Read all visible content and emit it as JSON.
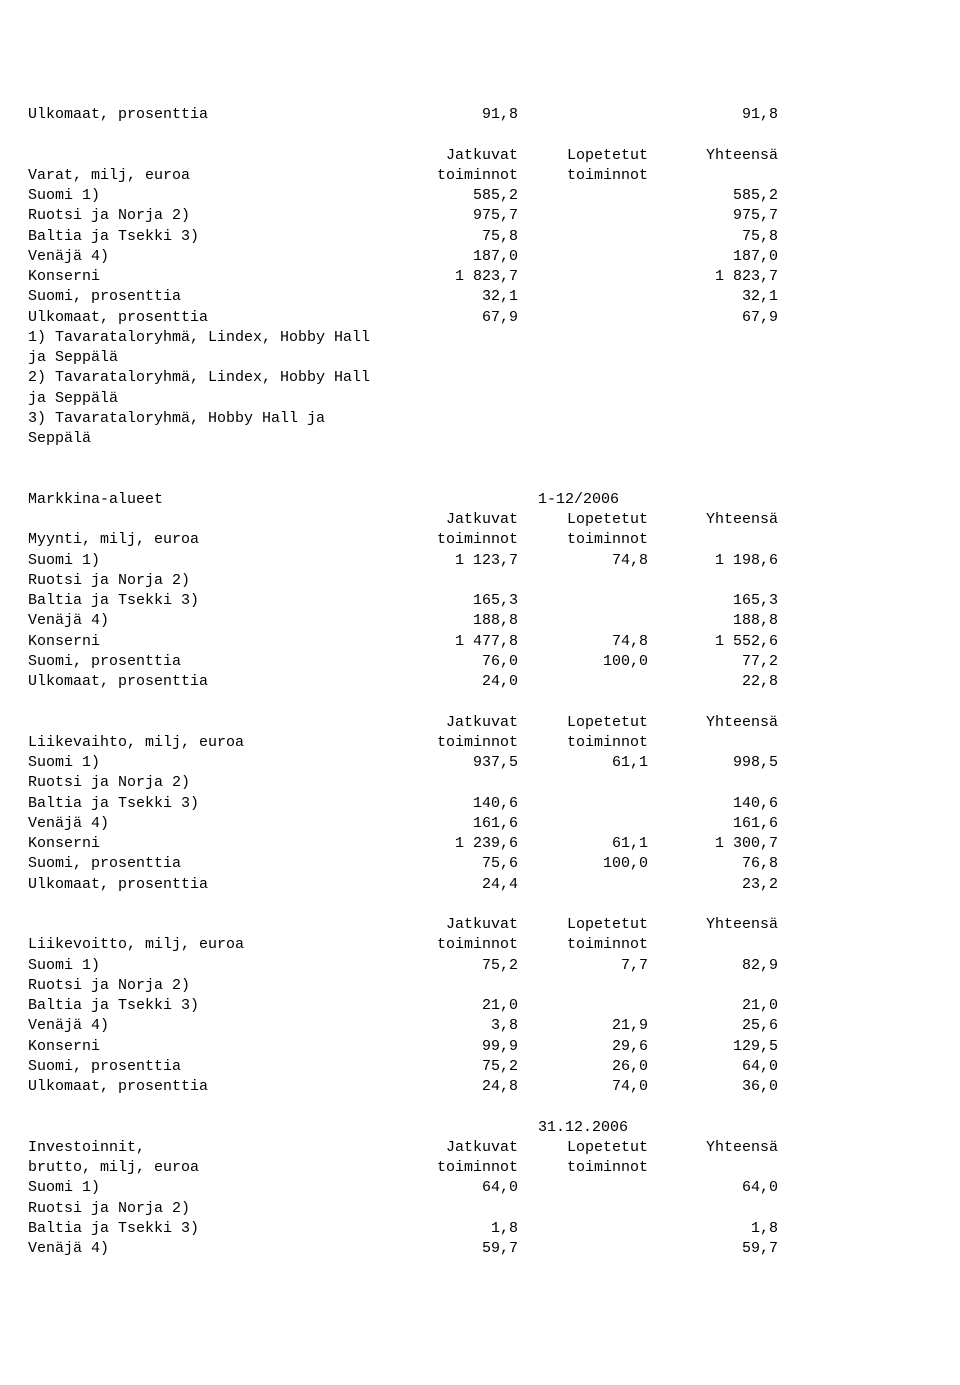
{
  "top": {
    "ulkomaat": {
      "label": "Ulkomaat, prosenttia",
      "c1": "91,8",
      "c3": "91,8"
    }
  },
  "varat": {
    "h1": {
      "c1": "Jatkuvat",
      "c2": "Lopetetut",
      "c3": "Yhteensä"
    },
    "h2": {
      "label": "Varat, milj, euroa",
      "c1": "toiminnot",
      "c2": "toiminnot"
    },
    "suomi": {
      "label": "Suomi 1)",
      "c1": "585,2",
      "c3": "585,2"
    },
    "ruotsi": {
      "label": "Ruotsi ja Norja 2)",
      "c1": "975,7",
      "c3": "975,7"
    },
    "baltia": {
      "label": "Baltia ja Tsekki 3)",
      "c1": "75,8",
      "c3": "75,8"
    },
    "venaja": {
      "label": "Venäjä 4)",
      "c1": "187,0",
      "c3": "187,0"
    },
    "konserni": {
      "label": "Konserni",
      "c1": "1 823,7",
      "c3": "1 823,7"
    },
    "suomi_p": {
      "label": "Suomi, prosenttia",
      "c1": "32,1",
      "c3": "32,1"
    },
    "ulkomaat_p": {
      "label": "Ulkomaat, prosenttia",
      "c1": "67,9",
      "c3": "67,9"
    },
    "note1": "1) Tavarataloryhmä, Lindex, Hobby Hall",
    "note1b": "ja Seppälä",
    "note2": "2) Tavarataloryhmä, Lindex, Hobby Hall",
    "note2b": "ja Seppälä",
    "note3": "3) Tavarataloryhmä, Hobby Hall ja",
    "note3b": "Seppälä"
  },
  "markkina": {
    "title": {
      "label": "Markkina-alueet",
      "c2b": "1-12/2006"
    },
    "h1": {
      "c1": "Jatkuvat",
      "c2": "Lopetetut",
      "c3": "Yhteensä"
    },
    "h2": {
      "label": "Myynti, milj, euroa",
      "c1": "toiminnot",
      "c2": "toiminnot"
    },
    "suomi": {
      "label": "Suomi 1)",
      "c1": "1 123,7",
      "c2": "74,8",
      "c3": "1 198,6"
    },
    "ruotsi": {
      "label": "Ruotsi ja Norja 2)"
    },
    "baltia": {
      "label": "Baltia ja Tsekki 3)",
      "c1": "165,3",
      "c3": "165,3"
    },
    "venaja": {
      "label": "Venäjä 4)",
      "c1": "188,8",
      "c3": "188,8"
    },
    "konserni": {
      "label": "Konserni",
      "c1": "1 477,8",
      "c2": "74,8",
      "c3": "1 552,6"
    },
    "suomi_p": {
      "label": "Suomi, prosenttia",
      "c1": "76,0",
      "c2": "100,0",
      "c3": "77,2"
    },
    "ulkomaat_p": {
      "label": "Ulkomaat, prosenttia",
      "c1": "24,0",
      "c3": "22,8"
    }
  },
  "liikevaihto": {
    "h1": {
      "c1": "Jatkuvat",
      "c2": "Lopetetut",
      "c3": "Yhteensä"
    },
    "h2": {
      "label": "Liikevaihto, milj, euroa",
      "c1": "toiminnot",
      "c2": "toiminnot"
    },
    "suomi": {
      "label": "Suomi 1)",
      "c1": "937,5",
      "c2": "61,1",
      "c3": "998,5"
    },
    "ruotsi": {
      "label": "Ruotsi ja Norja 2)"
    },
    "baltia": {
      "label": "Baltia ja Tsekki 3)",
      "c1": "140,6",
      "c3": "140,6"
    },
    "venaja": {
      "label": "Venäjä 4)",
      "c1": "161,6",
      "c3": "161,6"
    },
    "konserni": {
      "label": "Konserni",
      "c1": "1 239,6",
      "c2": "61,1",
      "c3": "1 300,7"
    },
    "suomi_p": {
      "label": "Suomi, prosenttia",
      "c1": "75,6",
      "c2": "100,0",
      "c3": "76,8"
    },
    "ulkomaat_p": {
      "label": "Ulkomaat, prosenttia",
      "c1": "24,4",
      "c3": "23,2"
    }
  },
  "liikevoitto": {
    "h1": {
      "c1": "Jatkuvat",
      "c2": "Lopetetut",
      "c3": "Yhteensä"
    },
    "h2": {
      "label": "Liikevoitto, milj, euroa",
      "c1": "toiminnot",
      "c2": "toiminnot"
    },
    "suomi": {
      "label": "Suomi 1)",
      "c1": "75,2",
      "c2": "7,7",
      "c3": "82,9"
    },
    "ruotsi": {
      "label": "Ruotsi ja Norja 2)"
    },
    "baltia": {
      "label": "Baltia ja Tsekki 3)",
      "c1": "21,0",
      "c3": "21,0"
    },
    "venaja": {
      "label": "Venäjä 4)",
      "c1": "3,8",
      "c2": "21,9",
      "c3": "25,6"
    },
    "konserni": {
      "label": "Konserni",
      "c1": "99,9",
      "c2": "29,6",
      "c3": "129,5"
    },
    "suomi_p": {
      "label": "Suomi, prosenttia",
      "c1": "75,2",
      "c2": "26,0",
      "c3": "64,0"
    },
    "ulkomaat_p": {
      "label": "Ulkomaat, prosenttia",
      "c1": "24,8",
      "c2": "74,0",
      "c3": "36,0"
    }
  },
  "investoinnit": {
    "date": {
      "c2b": "31.12.2006"
    },
    "h1": {
      "label": "Investoinnit,",
      "c1": "Jatkuvat",
      "c2": "Lopetetut",
      "c3": "Yhteensä"
    },
    "h2": {
      "label": "brutto, milj, euroa",
      "c1": "toiminnot",
      "c2": "toiminnot"
    },
    "suomi": {
      "label": "Suomi 1)",
      "c1": "64,0",
      "c3": "64,0"
    },
    "ruotsi": {
      "label": "Ruotsi ja Norja 2)"
    },
    "baltia": {
      "label": "Baltia ja Tsekki 3)",
      "c1": "1,8",
      "c3": "1,8"
    },
    "venaja": {
      "label": "Venäjä 4)",
      "c1": "59,7",
      "c3": "59,7"
    }
  }
}
